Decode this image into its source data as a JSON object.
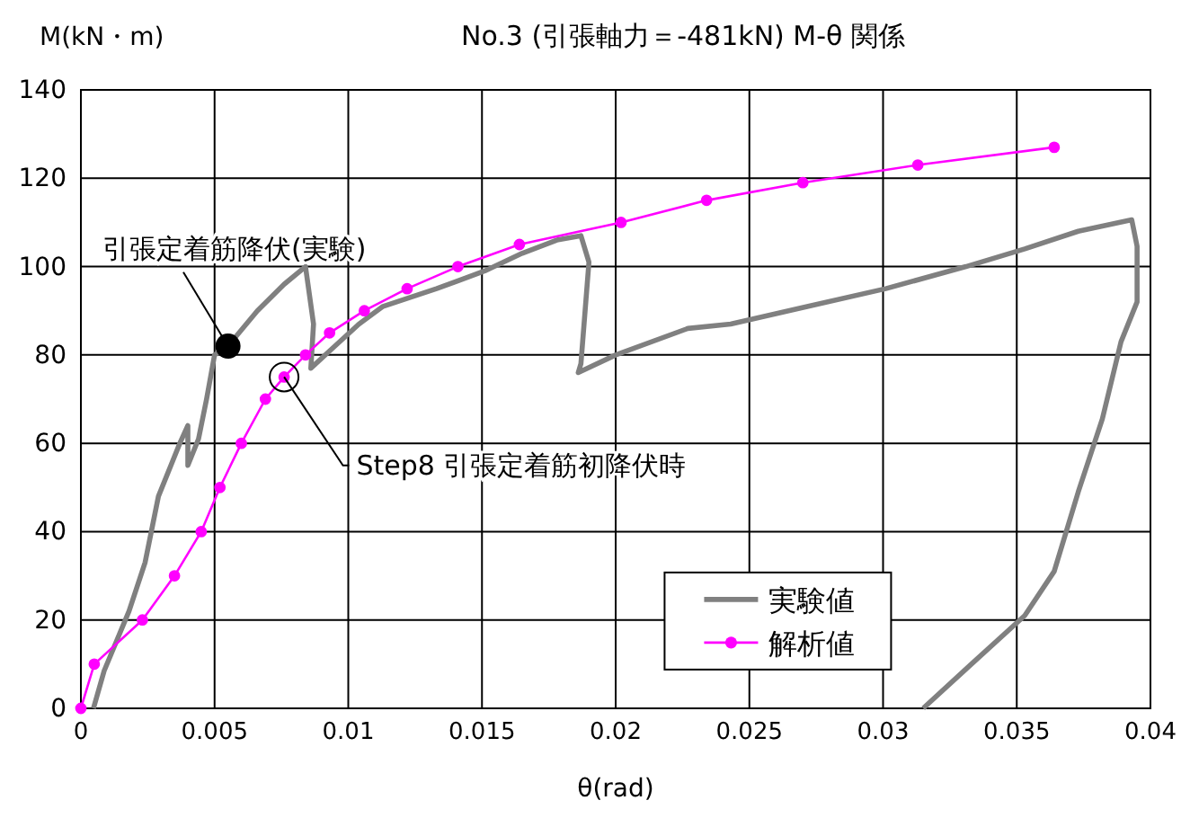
{
  "chart_data": {
    "type": "line",
    "title": "No.3 (引張軸力＝-481kN) M-θ 関係",
    "xlabel": "θ(rad)",
    "ylabel": "M(kN・m)",
    "xlim": [
      0,
      0.04
    ],
    "xticks": [
      0,
      0.005,
      0.01,
      0.015,
      0.02,
      0.025,
      0.03,
      0.035,
      0.04
    ],
    "ylim": [
      0,
      140
    ],
    "yticks": [
      0,
      20,
      40,
      60,
      80,
      100,
      120,
      140
    ],
    "grid": true,
    "legend": "bottom right",
    "series": [
      {
        "name": "実験値",
        "color": "#808080",
        "marker": "none",
        "x": [
          0.00047,
          0.00087,
          0.0018,
          0.0024,
          0.0029,
          0.0037,
          0.004,
          0.004,
          0.0044,
          0.0047,
          0.005,
          0.0055,
          0.0066,
          0.0076,
          0.0084,
          0.0087,
          0.0086,
          0.0095,
          0.0104,
          0.0113,
          0.0133,
          0.0151,
          0.0165,
          0.0178,
          0.0187,
          0.019,
          0.0187,
          0.0186,
          0.02,
          0.0227,
          0.0243,
          0.0272,
          0.0301,
          0.0331,
          0.0353,
          0.0373,
          0.0393,
          0.0395,
          0.0395,
          0.0389,
          0.0382,
          0.0373,
          0.0364,
          0.0353,
          0.0333,
          0.0315
        ],
        "values": [
          0,
          8.5,
          22,
          33,
          48,
          60,
          64,
          55,
          61,
          70,
          80,
          82,
          90,
          96,
          100,
          87,
          77,
          82,
          87,
          91,
          95,
          99,
          103,
          106,
          107,
          101,
          78,
          76,
          80,
          86,
          87,
          91,
          95,
          100,
          104,
          108,
          110.6,
          104.6,
          92,
          83,
          65.5,
          49,
          31,
          21,
          10,
          0
        ]
      },
      {
        "name": "解析値",
        "color": "#ff00ff",
        "marker": "circle",
        "x": [
          0,
          0.0005,
          0.0023,
          0.0035,
          0.0045,
          0.0052,
          0.006,
          0.0069,
          0.0076,
          0.0084,
          0.0093,
          0.0106,
          0.0122,
          0.0141,
          0.0164,
          0.0202,
          0.0234,
          0.027,
          0.0313,
          0.0364
        ],
        "values": [
          0,
          10,
          20,
          30,
          40,
          50,
          60,
          70,
          75,
          80,
          85,
          90,
          95,
          100,
          105,
          110,
          115,
          119,
          123,
          127
        ]
      }
    ],
    "annotations": [
      {
        "text": "引張定着筋降伏(実験)",
        "x": 0.0055,
        "y": 82
      },
      {
        "text": "Step8 引張定着筋初降伏時",
        "x": 0.0076,
        "y": 75
      }
    ]
  }
}
